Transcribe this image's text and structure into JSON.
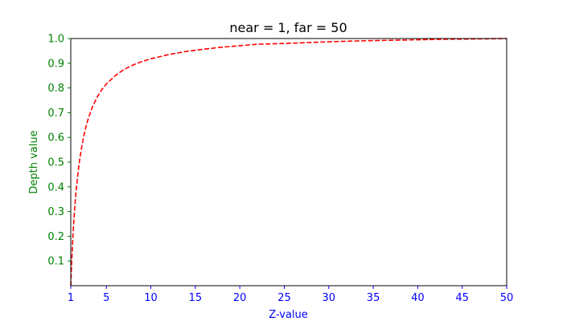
{
  "chart_data": {
    "type": "line",
    "title": "near = 1, far = 50",
    "xlabel": "Z-value",
    "ylabel": "Depth value",
    "xlim": [
      1,
      50
    ],
    "ylim": [
      0,
      1.0
    ],
    "xticks": [
      1,
      5,
      10,
      15,
      20,
      25,
      30,
      35,
      40,
      45,
      50
    ],
    "yticks": [
      0.1,
      0.2,
      0.3,
      0.4,
      0.5,
      0.6,
      0.7,
      0.8,
      0.9,
      1.0
    ],
    "xtick_labels": [
      "1",
      "5",
      "10",
      "15",
      "20",
      "25",
      "30",
      "35",
      "40",
      "45",
      "50"
    ],
    "ytick_labels": [
      "0.1",
      "0.2",
      "0.3",
      "0.4",
      "0.5",
      "0.6",
      "0.7",
      "0.8",
      "0.9",
      "1.0"
    ],
    "grid": false,
    "colors": {
      "line": "#ff0000",
      "xaxis_text": "#0000ff",
      "yaxis_text": "#008000"
    },
    "series": [
      {
        "line_style": "dashed",
        "x": [
          1,
          1.1,
          1.2,
          1.3,
          1.4,
          1.5,
          1.6,
          1.8,
          2,
          2.25,
          2.5,
          2.75,
          3,
          3.5,
          4,
          4.5,
          5,
          6,
          7,
          8,
          9,
          10,
          12,
          14,
          16,
          18,
          20,
          22,
          25,
          28,
          31,
          34,
          37,
          40,
          43,
          46,
          50
        ],
        "y": [
          0,
          0.093,
          0.17,
          0.236,
          0.292,
          0.34,
          0.383,
          0.453,
          0.51,
          0.566,
          0.612,
          0.65,
          0.68,
          0.729,
          0.765,
          0.794,
          0.816,
          0.85,
          0.875,
          0.893,
          0.907,
          0.918,
          0.935,
          0.948,
          0.957,
          0.965,
          0.971,
          0.977,
          0.98,
          0.984,
          0.988,
          0.991,
          0.993,
          0.995,
          0.997,
          0.998,
          1.0
        ]
      }
    ]
  }
}
